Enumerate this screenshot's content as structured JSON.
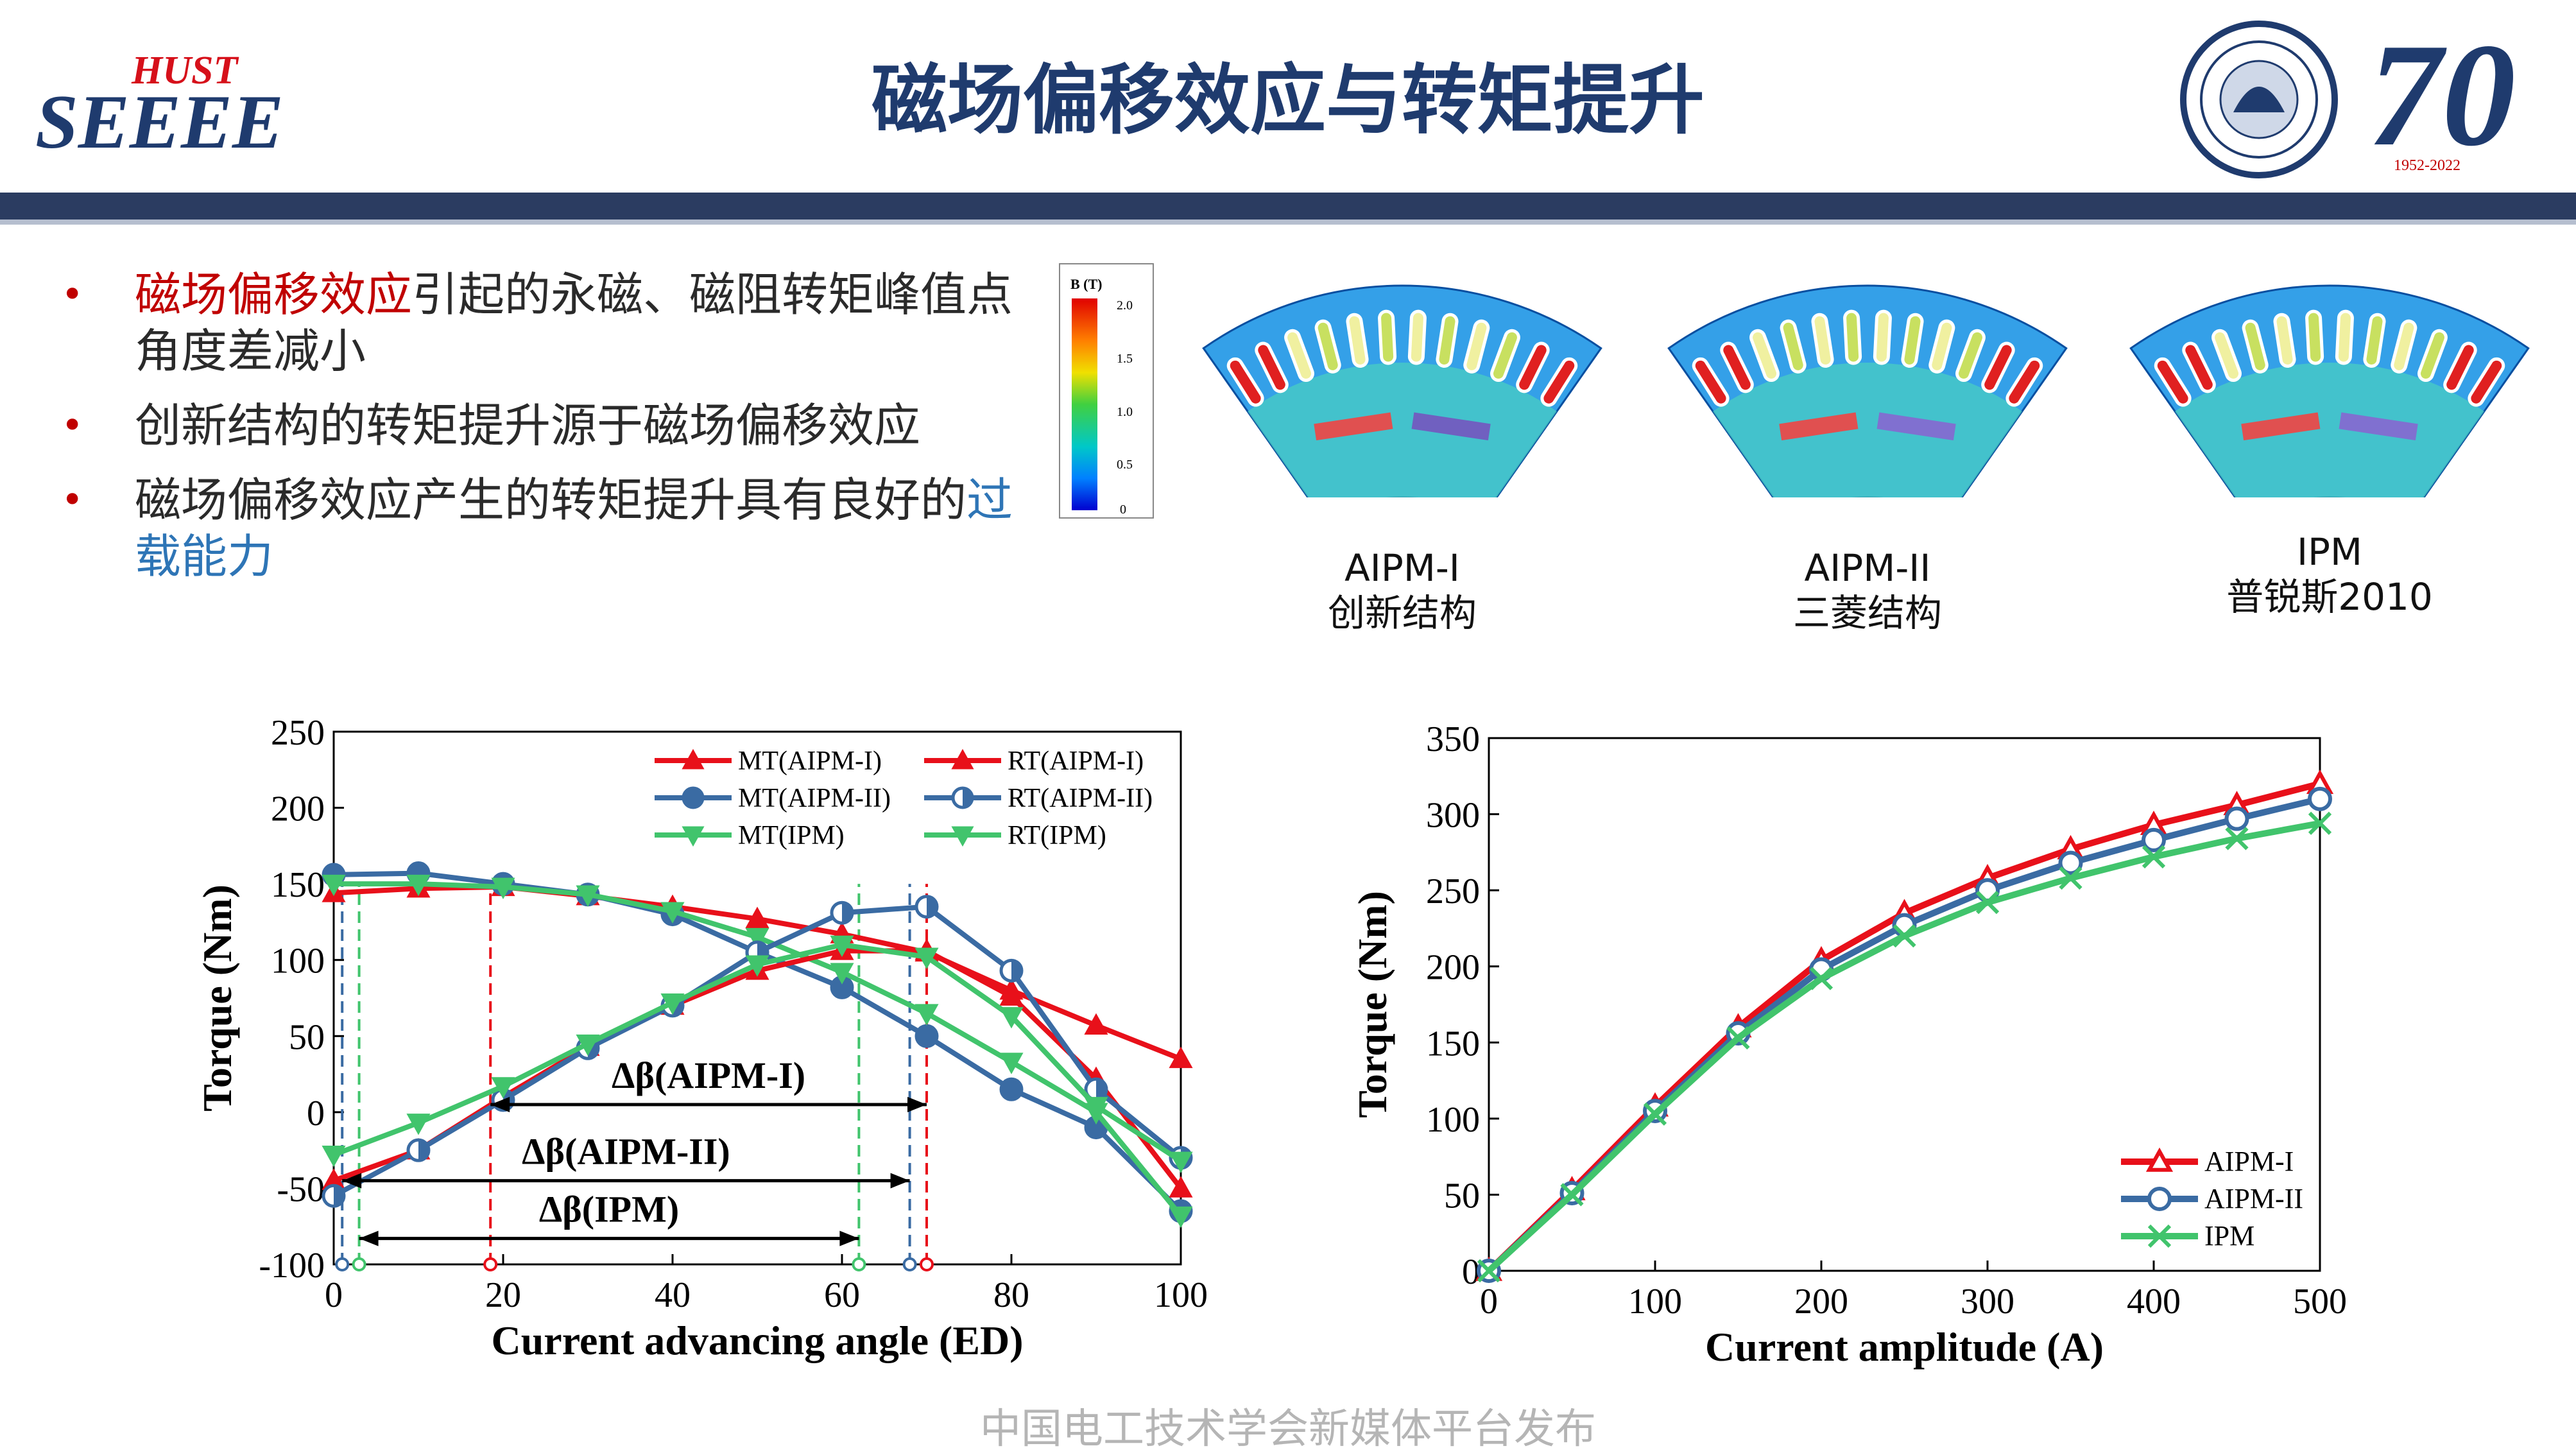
{
  "header": {
    "title": "磁场偏移效应与转矩提升",
    "logo_left_top": "HUST",
    "logo_left_bottom": "SEEEE",
    "logo_right_text": "70",
    "logo_right_years": "1952-2022"
  },
  "bullets": [
    {
      "parts": [
        {
          "text": "磁场偏移效应",
          "style": "red"
        },
        {
          "text": "引起的永磁、磁阻转矩峰值点角度差减小",
          "style": "normal"
        }
      ]
    },
    {
      "parts": [
        {
          "text": "创新结构的转矩提升源于磁场偏移效应",
          "style": "normal"
        }
      ]
    },
    {
      "parts": [
        {
          "text": "磁场偏移效应产生的转矩提升具有良好的",
          "style": "normal"
        },
        {
          "text": "过载能力",
          "style": "blue"
        }
      ]
    }
  ],
  "colorbar": {
    "title": "B (T)",
    "ticks": [
      "2.0",
      "1.5",
      "1.0",
      "0.5",
      "0"
    ]
  },
  "fem_labels": [
    {
      "line1": "AIPM-I",
      "line2": "创新结构"
    },
    {
      "line1": "AIPM-II",
      "line2": "三菱结构"
    },
    {
      "line1": "IPM",
      "line2": "普锐斯2010"
    }
  ],
  "watermark": "中国电工技术学会新媒体平台发布",
  "colors": {
    "aipm1": "#e8101a",
    "aipm2": "#3a6ba3",
    "ipm": "#41c46c",
    "navy": "#2b3c61"
  },
  "chart_data": [
    {
      "type": "line",
      "xlabel": "Current advancing angle (ED)",
      "ylabel": "Torque (Nm)",
      "xlim": [
        0,
        100
      ],
      "ylim": [
        -100,
        250
      ],
      "xticks": [
        0,
        20,
        40,
        60,
        80,
        100
      ],
      "yticks": [
        -100,
        -50,
        0,
        50,
        100,
        150,
        200,
        250
      ],
      "x": [
        0,
        10,
        20,
        30,
        40,
        50,
        60,
        70,
        80,
        90,
        100
      ],
      "series": [
        {
          "name": "MT(AIPM-I)",
          "color": "#e8101a",
          "marker": "triangle-up",
          "values": [
            144,
            147,
            148,
            142,
            135,
            127,
            117,
            105,
            80,
            57,
            35
          ]
        },
        {
          "name": "MT(AIPM-II)",
          "color": "#3a6ba3",
          "marker": "circle",
          "values": [
            156,
            157,
            150,
            143,
            130,
            105,
            82,
            50,
            15,
            -10,
            -65
          ]
        },
        {
          "name": "MT(IPM)",
          "color": "#41c46c",
          "marker": "triangle-down",
          "values": [
            150,
            150,
            148,
            143,
            132,
            115,
            92,
            65,
            33,
            0,
            -68
          ]
        },
        {
          "name": "RT(AIPM-I)",
          "color": "#e8101a",
          "marker": "triangle-up",
          "values": [
            -45,
            -25,
            10,
            43,
            70,
            93,
            106,
            106,
            76,
            22,
            -50
          ]
        },
        {
          "name": "RT(AIPM-II)",
          "color": "#3a6ba3",
          "marker": "half-circle",
          "values": [
            -55,
            -25,
            8,
            42,
            70,
            105,
            131,
            135,
            93,
            15,
            -30
          ]
        },
        {
          "name": "RT(IPM)",
          "color": "#41c46c",
          "marker": "triangle-down",
          "values": [
            -28,
            -7,
            17,
            45,
            72,
            97,
            110,
            102,
            63,
            4,
            -32
          ]
        }
      ],
      "legend_position": "top-right",
      "annotations": [
        {
          "text": "Δβ(AIPM-I)",
          "from": 18.5,
          "to": 70,
          "y": 5
        },
        {
          "text": "Δβ(AIPM-II)",
          "from": 1,
          "to": 68,
          "y": -45
        },
        {
          "text": "Δβ(IPM)",
          "from": 3,
          "to": 62,
          "y": -83
        }
      ],
      "vlines": [
        {
          "x": 18.5,
          "color": "#e8101a"
        },
        {
          "x": 70,
          "color": "#e8101a"
        },
        {
          "x": 1,
          "color": "#3a6ba3"
        },
        {
          "x": 68,
          "color": "#3a6ba3"
        },
        {
          "x": 3,
          "color": "#41c46c"
        },
        {
          "x": 62,
          "color": "#41c46c"
        }
      ]
    },
    {
      "type": "line",
      "xlabel": "Current amplitude (A)",
      "ylabel": "Torque (Nm)",
      "xlim": [
        0,
        500
      ],
      "ylim": [
        0,
        350
      ],
      "xticks": [
        0,
        100,
        200,
        300,
        400,
        500
      ],
      "yticks": [
        0,
        50,
        100,
        150,
        200,
        250,
        300,
        350
      ],
      "x": [
        0,
        50,
        100,
        150,
        200,
        250,
        300,
        350,
        400,
        450,
        500
      ],
      "series": [
        {
          "name": "AIPM-I",
          "color": "#e8101a",
          "marker": "triangle-up",
          "values": [
            0,
            53,
            108,
            160,
            204,
            235,
            258,
            277,
            293,
            306,
            320
          ]
        },
        {
          "name": "AIPM-II",
          "color": "#3a6ba3",
          "marker": "circle",
          "values": [
            0,
            51,
            105,
            156,
            198,
            227,
            250,
            268,
            283,
            297,
            310
          ]
        },
        {
          "name": "IPM",
          "color": "#41c46c",
          "marker": "cross",
          "values": [
            0,
            50,
            103,
            153,
            192,
            220,
            242,
            258,
            272,
            284,
            294
          ]
        }
      ],
      "legend_position": "bottom-right"
    }
  ]
}
